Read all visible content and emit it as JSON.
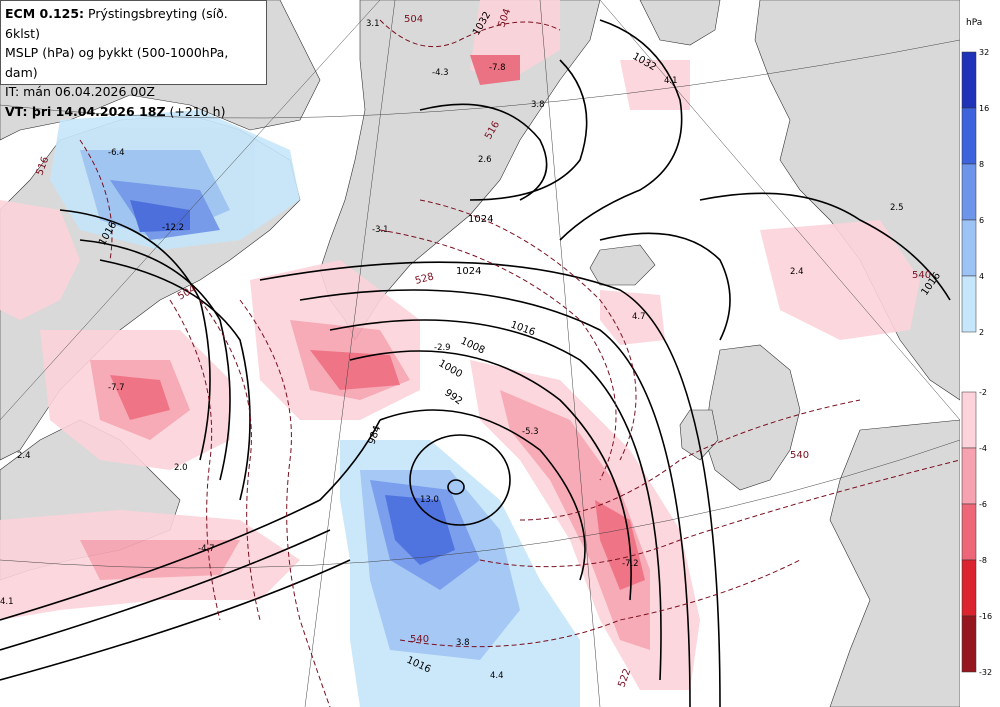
{
  "header": {
    "model": "ECM 0.125:",
    "title": "Prýstingsbreyting (síð. 6klst)",
    "line2": "MSLP (hPa) og þykkt (500-1000hPa, dam)",
    "line3": "IT: mán 06.04.2026 00Z",
    "vt_label": "VT: þri 14.04.2026 18Z",
    "vt_suffix": "(+210 h)"
  },
  "legend": {
    "unit": "hPa",
    "rise_ticks": [
      "32",
      "16",
      "8",
      "6",
      "4",
      "2"
    ],
    "rise_colors": [
      "#1f33b8",
      "#3d64dc",
      "#6d95ea",
      "#9cc3f4",
      "#c6e6fb"
    ],
    "fall_ticks": [
      "-2",
      "-4",
      "-6",
      "-8",
      "-16",
      "-32"
    ],
    "fall_colors": [
      "#fcd3da",
      "#f7a2b0",
      "#ee6779",
      "#dc2330",
      "#96161f"
    ]
  },
  "map_labels": {
    "change_values": [
      "3.1",
      "-4.3",
      "-7.8",
      "3.8",
      "4.1",
      "2.6",
      "-6.4",
      "-12.2",
      "-3.1",
      "-7.7",
      "2.4",
      "2.0",
      "-4.7",
      "4.1",
      "13.0",
      "-2.9",
      "-5.3",
      "4.7",
      "2.4",
      "2.5",
      "-7.2",
      "3.8",
      "4.4"
    ],
    "isobars": [
      "1032",
      "1032",
      "1024",
      "1016",
      "1008",
      "1000",
      "992",
      "984",
      "1016",
      "1016",
      "1016",
      "1024"
    ],
    "thickness": [
      "504",
      "504",
      "516",
      "528",
      "504",
      "540",
      "540",
      "522",
      "540",
      "516"
    ]
  },
  "colors": {
    "land": "#d9d9d9",
    "isobar": "#000000",
    "thickness": "#7a1020"
  }
}
